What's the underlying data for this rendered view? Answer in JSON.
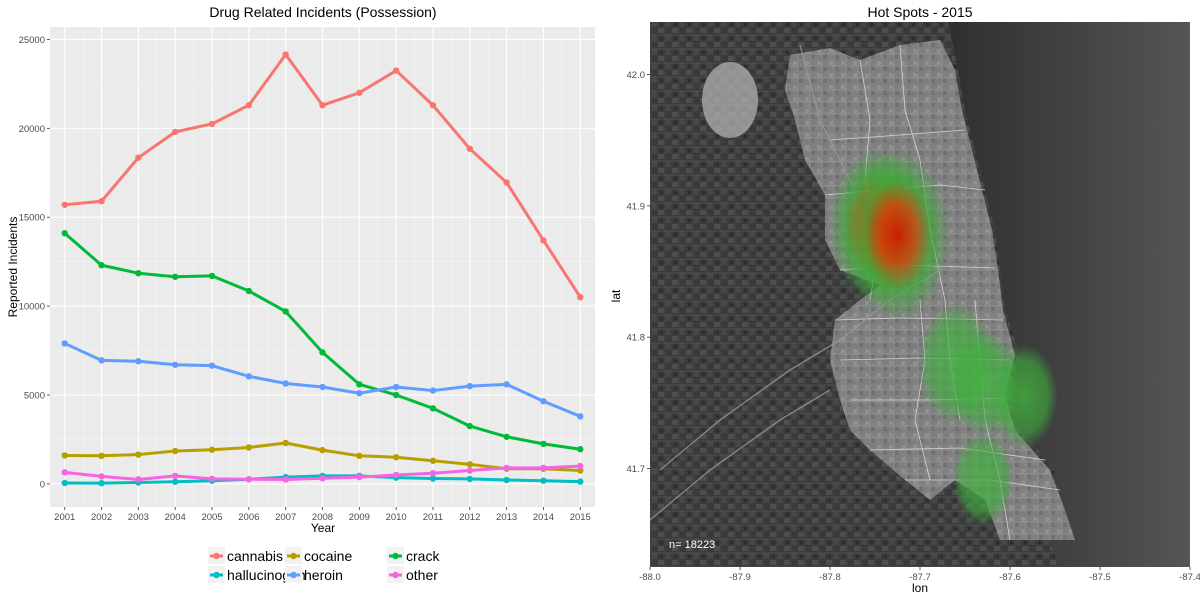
{
  "chart_data": [
    {
      "type": "line",
      "title": "Drug Related Incidents (Possession)",
      "xlabel": "Year",
      "ylabel": "Reported Incidents",
      "x": [
        2001,
        2002,
        2003,
        2004,
        2005,
        2006,
        2007,
        2008,
        2009,
        2010,
        2011,
        2012,
        2013,
        2014,
        2015
      ],
      "xlim": [
        2000.6,
        2015.4
      ],
      "ylim": [
        -1300,
        25700
      ],
      "yticks": [
        0,
        5000,
        10000,
        15000,
        20000,
        25000
      ],
      "grid": true,
      "legend_position": "bottom",
      "series": [
        {
          "name": "cannabis",
          "color": "#f8766d",
          "values": [
            15700,
            15900,
            18350,
            19800,
            20250,
            21300,
            24150,
            21300,
            22000,
            23250,
            21300,
            18850,
            16950,
            13700,
            10500
          ]
        },
        {
          "name": "cocaine",
          "color": "#b79f00",
          "values": [
            1600,
            1580,
            1650,
            1850,
            1920,
            2050,
            2300,
            1900,
            1580,
            1500,
            1300,
            1100,
            850,
            850,
            750
          ]
        },
        {
          "name": "crack",
          "color": "#00ba38",
          "values": [
            14100,
            12300,
            11850,
            11650,
            11700,
            10850,
            9700,
            7400,
            5600,
            5000,
            4250,
            3250,
            2650,
            2250,
            1950
          ]
        },
        {
          "name": "hallucinogen",
          "color": "#00bfc4",
          "values": [
            50,
            40,
            80,
            120,
            180,
            260,
            380,
            450,
            450,
            350,
            300,
            280,
            220,
            180,
            130
          ]
        },
        {
          "name": "heroin",
          "color": "#619cff",
          "values": [
            7900,
            6950,
            6900,
            6700,
            6650,
            6050,
            5650,
            5450,
            5100,
            5450,
            5250,
            5500,
            5600,
            4650,
            3800
          ]
        },
        {
          "name": "other",
          "color": "#f564e3",
          "values": [
            650,
            420,
            250,
            450,
            280,
            260,
            250,
            320,
            380,
            500,
            600,
            750,
            900,
            900,
            1000
          ]
        }
      ]
    },
    {
      "type": "heatmap",
      "title": "Hot Spots -  2015",
      "xlabel": "lon",
      "ylabel": "lat",
      "xlim": [
        -88.0,
        -87.4
      ],
      "ylim": [
        41.625,
        42.04
      ],
      "xticks": [
        "-88.0",
        "-87.9",
        "-87.8",
        "-87.7",
        "-87.6",
        "-87.5",
        "-87.4"
      ],
      "yticks": [
        "41.7",
        "41.8",
        "41.9",
        "42.0"
      ],
      "xtick_values": [
        -88.0,
        -87.9,
        -87.8,
        -87.7,
        -87.6,
        -87.5,
        -87.4
      ],
      "ytick_values": [
        41.7,
        41.8,
        41.9,
        42.0
      ],
      "annotation": "n= 18223",
      "hotspots": [
        {
          "lon": -87.748,
          "lat": 41.885,
          "intensity": 0.85
        },
        {
          "lon": -87.725,
          "lat": 41.878,
          "intensity": 1.0
        },
        {
          "lon": -87.66,
          "lat": 41.78,
          "intensity": 0.55
        },
        {
          "lon": -87.628,
          "lat": 41.765,
          "intensity": 0.4
        },
        {
          "lon": -87.585,
          "lat": 41.755,
          "intensity": 0.4
        },
        {
          "lon": -87.63,
          "lat": 41.692,
          "intensity": 0.3
        }
      ]
    }
  ]
}
